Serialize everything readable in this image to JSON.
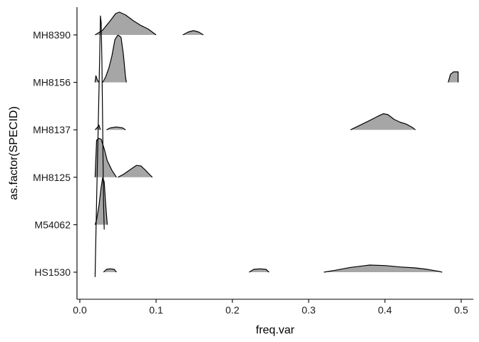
{
  "chart_data": {
    "type": "ridgeline",
    "xlabel": "freq.var",
    "ylabel": "as.factor(SPECID)",
    "xlim": [
      0.0,
      0.52
    ],
    "xticks": [
      {
        "value": 0.0,
        "label": "0.0"
      },
      {
        "value": 0.1,
        "label": "0.1"
      },
      {
        "value": 0.2,
        "label": "0.2"
      },
      {
        "value": 0.3,
        "label": "0.3"
      },
      {
        "value": 0.4,
        "label": "0.4"
      },
      {
        "value": 0.5,
        "label": "0.5"
      }
    ],
    "fill_color": "#a6a6a6",
    "line_color": "#000000",
    "grid": false,
    "legend": "none",
    "series": [
      {
        "name": "HS1530",
        "segments": [
          [
            [
              0.031,
              0.0
            ],
            [
              0.035,
              0.06
            ],
            [
              0.04,
              0.07
            ],
            [
              0.045,
              0.06
            ],
            [
              0.048,
              0.0
            ]
          ],
          [
            [
              0.222,
              0.0
            ],
            [
              0.228,
              0.06
            ],
            [
              0.236,
              0.07
            ],
            [
              0.244,
              0.06
            ],
            [
              0.248,
              0.0
            ]
          ],
          [
            [
              0.32,
              0.0
            ],
            [
              0.335,
              0.04
            ],
            [
              0.355,
              0.1
            ],
            [
              0.38,
              0.15
            ],
            [
              0.4,
              0.14
            ],
            [
              0.42,
              0.11
            ],
            [
              0.44,
              0.09
            ],
            [
              0.455,
              0.06
            ],
            [
              0.47,
              0.02
            ],
            [
              0.475,
              0.0
            ]
          ]
        ]
      },
      {
        "name": "M54062",
        "segments": [
          [
            [
              0.02,
              0.0
            ],
            [
              0.022,
              0.1
            ],
            [
              0.025,
              0.4
            ],
            [
              0.028,
              0.8
            ],
            [
              0.03,
              1.0
            ],
            [
              0.032,
              0.9
            ],
            [
              0.034,
              0.4
            ],
            [
              0.036,
              0.0
            ]
          ]
        ]
      },
      {
        "name": "MH8125",
        "segments": [
          [
            [
              0.02,
              0.0
            ],
            [
              0.022,
              0.78
            ],
            [
              0.025,
              0.82
            ],
            [
              0.028,
              0.8
            ],
            [
              0.032,
              0.6
            ],
            [
              0.036,
              0.35
            ],
            [
              0.042,
              0.15
            ],
            [
              0.048,
              0.0
            ]
          ],
          [
            [
              0.05,
              0.0
            ],
            [
              0.058,
              0.07
            ],
            [
              0.066,
              0.16
            ],
            [
              0.074,
              0.25
            ],
            [
              0.08,
              0.24
            ],
            [
              0.086,
              0.15
            ],
            [
              0.092,
              0.05
            ],
            [
              0.095,
              0.0
            ]
          ]
        ]
      },
      {
        "name": "MH8137",
        "segments": [
          [
            [
              0.02,
              0.0
            ],
            [
              0.023,
              0.05
            ],
            [
              0.025,
              0.1
            ],
            [
              0.027,
              0.0
            ]
          ],
          [
            [
              0.035,
              0.0
            ],
            [
              0.04,
              0.04
            ],
            [
              0.048,
              0.06
            ],
            [
              0.056,
              0.04
            ],
            [
              0.06,
              0.0
            ]
          ],
          [
            [
              0.355,
              0.0
            ],
            [
              0.365,
              0.08
            ],
            [
              0.378,
              0.18
            ],
            [
              0.39,
              0.28
            ],
            [
              0.398,
              0.34
            ],
            [
              0.404,
              0.32
            ],
            [
              0.412,
              0.22
            ],
            [
              0.42,
              0.16
            ],
            [
              0.428,
              0.12
            ],
            [
              0.436,
              0.05
            ],
            [
              0.44,
              0.0
            ]
          ]
        ]
      },
      {
        "name": "MH8156",
        "segments": [
          [
            [
              0.02,
              0.0
            ],
            [
              0.021,
              0.14
            ],
            [
              0.023,
              0.05
            ],
            [
              0.025,
              0.0
            ]
          ],
          [
            [
              0.03,
              0.0
            ],
            [
              0.034,
              0.12
            ],
            [
              0.038,
              0.3
            ],
            [
              0.042,
              0.55
            ],
            [
              0.046,
              0.9
            ],
            [
              0.05,
              1.0
            ],
            [
              0.054,
              0.95
            ],
            [
              0.057,
              0.6
            ],
            [
              0.06,
              0.1
            ],
            [
              0.061,
              0.0
            ]
          ],
          [
            [
              0.483,
              0.0
            ],
            [
              0.486,
              0.17
            ],
            [
              0.49,
              0.22
            ],
            [
              0.496,
              0.22
            ],
            [
              0.496,
              0.0
            ]
          ]
        ]
      },
      {
        "name": "MH8390",
        "segments": [
          [
            [
              0.02,
              0.0
            ],
            [
              0.03,
              0.1
            ],
            [
              0.04,
              0.3
            ],
            [
              0.047,
              0.45
            ],
            [
              0.052,
              0.48
            ],
            [
              0.06,
              0.42
            ],
            [
              0.07,
              0.3
            ],
            [
              0.08,
              0.2
            ],
            [
              0.09,
              0.12
            ],
            [
              0.1,
              0.0
            ]
          ],
          [
            [
              0.135,
              0.0
            ],
            [
              0.142,
              0.06
            ],
            [
              0.149,
              0.09
            ],
            [
              0.156,
              0.06
            ],
            [
              0.162,
              0.0
            ]
          ]
        ]
      }
    ],
    "overlay_line": {
      "name": "",
      "points": [
        [
          0.02,
          -0.1
        ],
        [
          0.022,
          1.5
        ],
        [
          0.024,
          3.0
        ],
        [
          0.026,
          4.5
        ],
        [
          0.027,
          5.4
        ],
        [
          0.028,
          5.25
        ],
        [
          0.029,
          4.4
        ],
        [
          0.03,
          3.0
        ],
        [
          0.031,
          1.5
        ],
        [
          0.032,
          0.9
        ]
      ]
    }
  }
}
